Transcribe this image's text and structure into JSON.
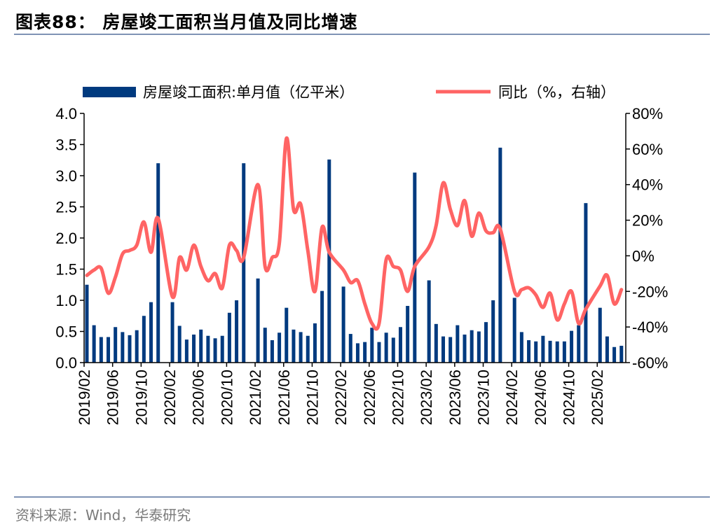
{
  "header": {
    "title": "图表88：  房屋竣工面积当月值及同比增速"
  },
  "footer": {
    "source": "资料来源：Wind，华泰研究"
  },
  "chart_data": {
    "type": "bar+line",
    "title": "图表88：  房屋竣工面积当月值及同比增速",
    "legend_position": "top",
    "grid": false,
    "colors": {
      "bars": "#003A7F",
      "line": "#FF6464"
    },
    "y_left": {
      "lim": [
        0,
        4.0
      ],
      "ticks": [
        "0.0",
        "0.5",
        "1.0",
        "1.5",
        "2.0",
        "2.5",
        "3.0",
        "3.5",
        "4.0"
      ]
    },
    "y_right": {
      "lim": [
        -60,
        80
      ],
      "ticks": [
        "-60%",
        "-40%",
        "-20%",
        "0%",
        "20%",
        "40%",
        "60%",
        "80%"
      ]
    },
    "x_ticks": [
      "2019/02",
      "2019/06",
      "2019/10",
      "2020/02",
      "2020/06",
      "2020/10",
      "2021/02",
      "2021/06",
      "2021/10",
      "2022/02",
      "2022/06",
      "2022/10",
      "2023/02",
      "2023/06",
      "2023/10",
      "2024/02",
      "2024/06",
      "2024/10",
      "2025/02"
    ],
    "categories": [
      "2019/02",
      "2019/03",
      "2019/04",
      "2019/05",
      "2019/06",
      "2019/07",
      "2019/08",
      "2019/09",
      "2019/10",
      "2019/11",
      "2019/12",
      "2020/02",
      "2020/03",
      "2020/04",
      "2020/05",
      "2020/06",
      "2020/07",
      "2020/08",
      "2020/09",
      "2020/10",
      "2020/11",
      "2020/12",
      "2021/02",
      "2021/03",
      "2021/04",
      "2021/05",
      "2021/06",
      "2021/07",
      "2021/08",
      "2021/09",
      "2021/10",
      "2021/11",
      "2021/12",
      "2022/02",
      "2022/03",
      "2022/04",
      "2022/05",
      "2022/06",
      "2022/07",
      "2022/08",
      "2022/09",
      "2022/10",
      "2022/11",
      "2022/12",
      "2023/02",
      "2023/03",
      "2023/04",
      "2023/05",
      "2023/06",
      "2023/07",
      "2023/08",
      "2023/09",
      "2023/10",
      "2023/11",
      "2023/12",
      "2024/02",
      "2024/03",
      "2024/04",
      "2024/05",
      "2024/06",
      "2024/07",
      "2024/08",
      "2024/09",
      "2024/10",
      "2024/11",
      "2024/12",
      "2025/02",
      "2025/03",
      "2025/04",
      "2025/05"
    ],
    "series": [
      {
        "name": "房屋竣工面积:单月值（亿平米）",
        "type": "bar",
        "axis": "left",
        "values": [
          1.25,
          0.6,
          0.41,
          0.41,
          0.57,
          0.49,
          0.44,
          0.52,
          0.75,
          0.97,
          3.2,
          0.97,
          0.59,
          0.37,
          0.45,
          0.53,
          0.43,
          0.39,
          0.43,
          0.8,
          1.0,
          3.2,
          1.35,
          0.56,
          0.36,
          0.48,
          0.88,
          0.53,
          0.49,
          0.43,
          0.63,
          1.15,
          3.26,
          1.22,
          0.46,
          0.31,
          0.33,
          0.56,
          0.33,
          0.48,
          0.4,
          0.57,
          0.91,
          3.05,
          1.32,
          0.62,
          0.42,
          0.41,
          0.6,
          0.45,
          0.52,
          0.5,
          0.65,
          1.0,
          3.45,
          1.04,
          0.49,
          0.36,
          0.34,
          0.43,
          0.35,
          0.34,
          0.34,
          0.51,
          0.6,
          2.56,
          0.88,
          0.42,
          0.25,
          0.27
        ]
      },
      {
        "name": "同比（%，右轴）",
        "type": "line",
        "axis": "right",
        "values": [
          -11,
          -8,
          -7,
          -21,
          -12,
          1,
          3,
          6,
          19,
          2,
          21,
          -23,
          -1,
          -8,
          6,
          -6,
          -14,
          -10,
          -18,
          6,
          3,
          -1,
          40,
          -6,
          -1,
          7,
          66,
          26,
          29,
          3,
          -20,
          16,
          2,
          -8,
          -15,
          -14,
          -27,
          -38,
          -38,
          -2,
          -6,
          -8,
          -20,
          -6,
          5,
          17,
          41,
          26,
          17,
          31,
          11,
          24,
          14,
          13,
          15,
          -20,
          -19,
          -18,
          -22,
          -29,
          -21,
          -36,
          -27,
          -20,
          -38,
          -30,
          -17,
          -11,
          -27,
          -19
        ]
      }
    ]
  }
}
